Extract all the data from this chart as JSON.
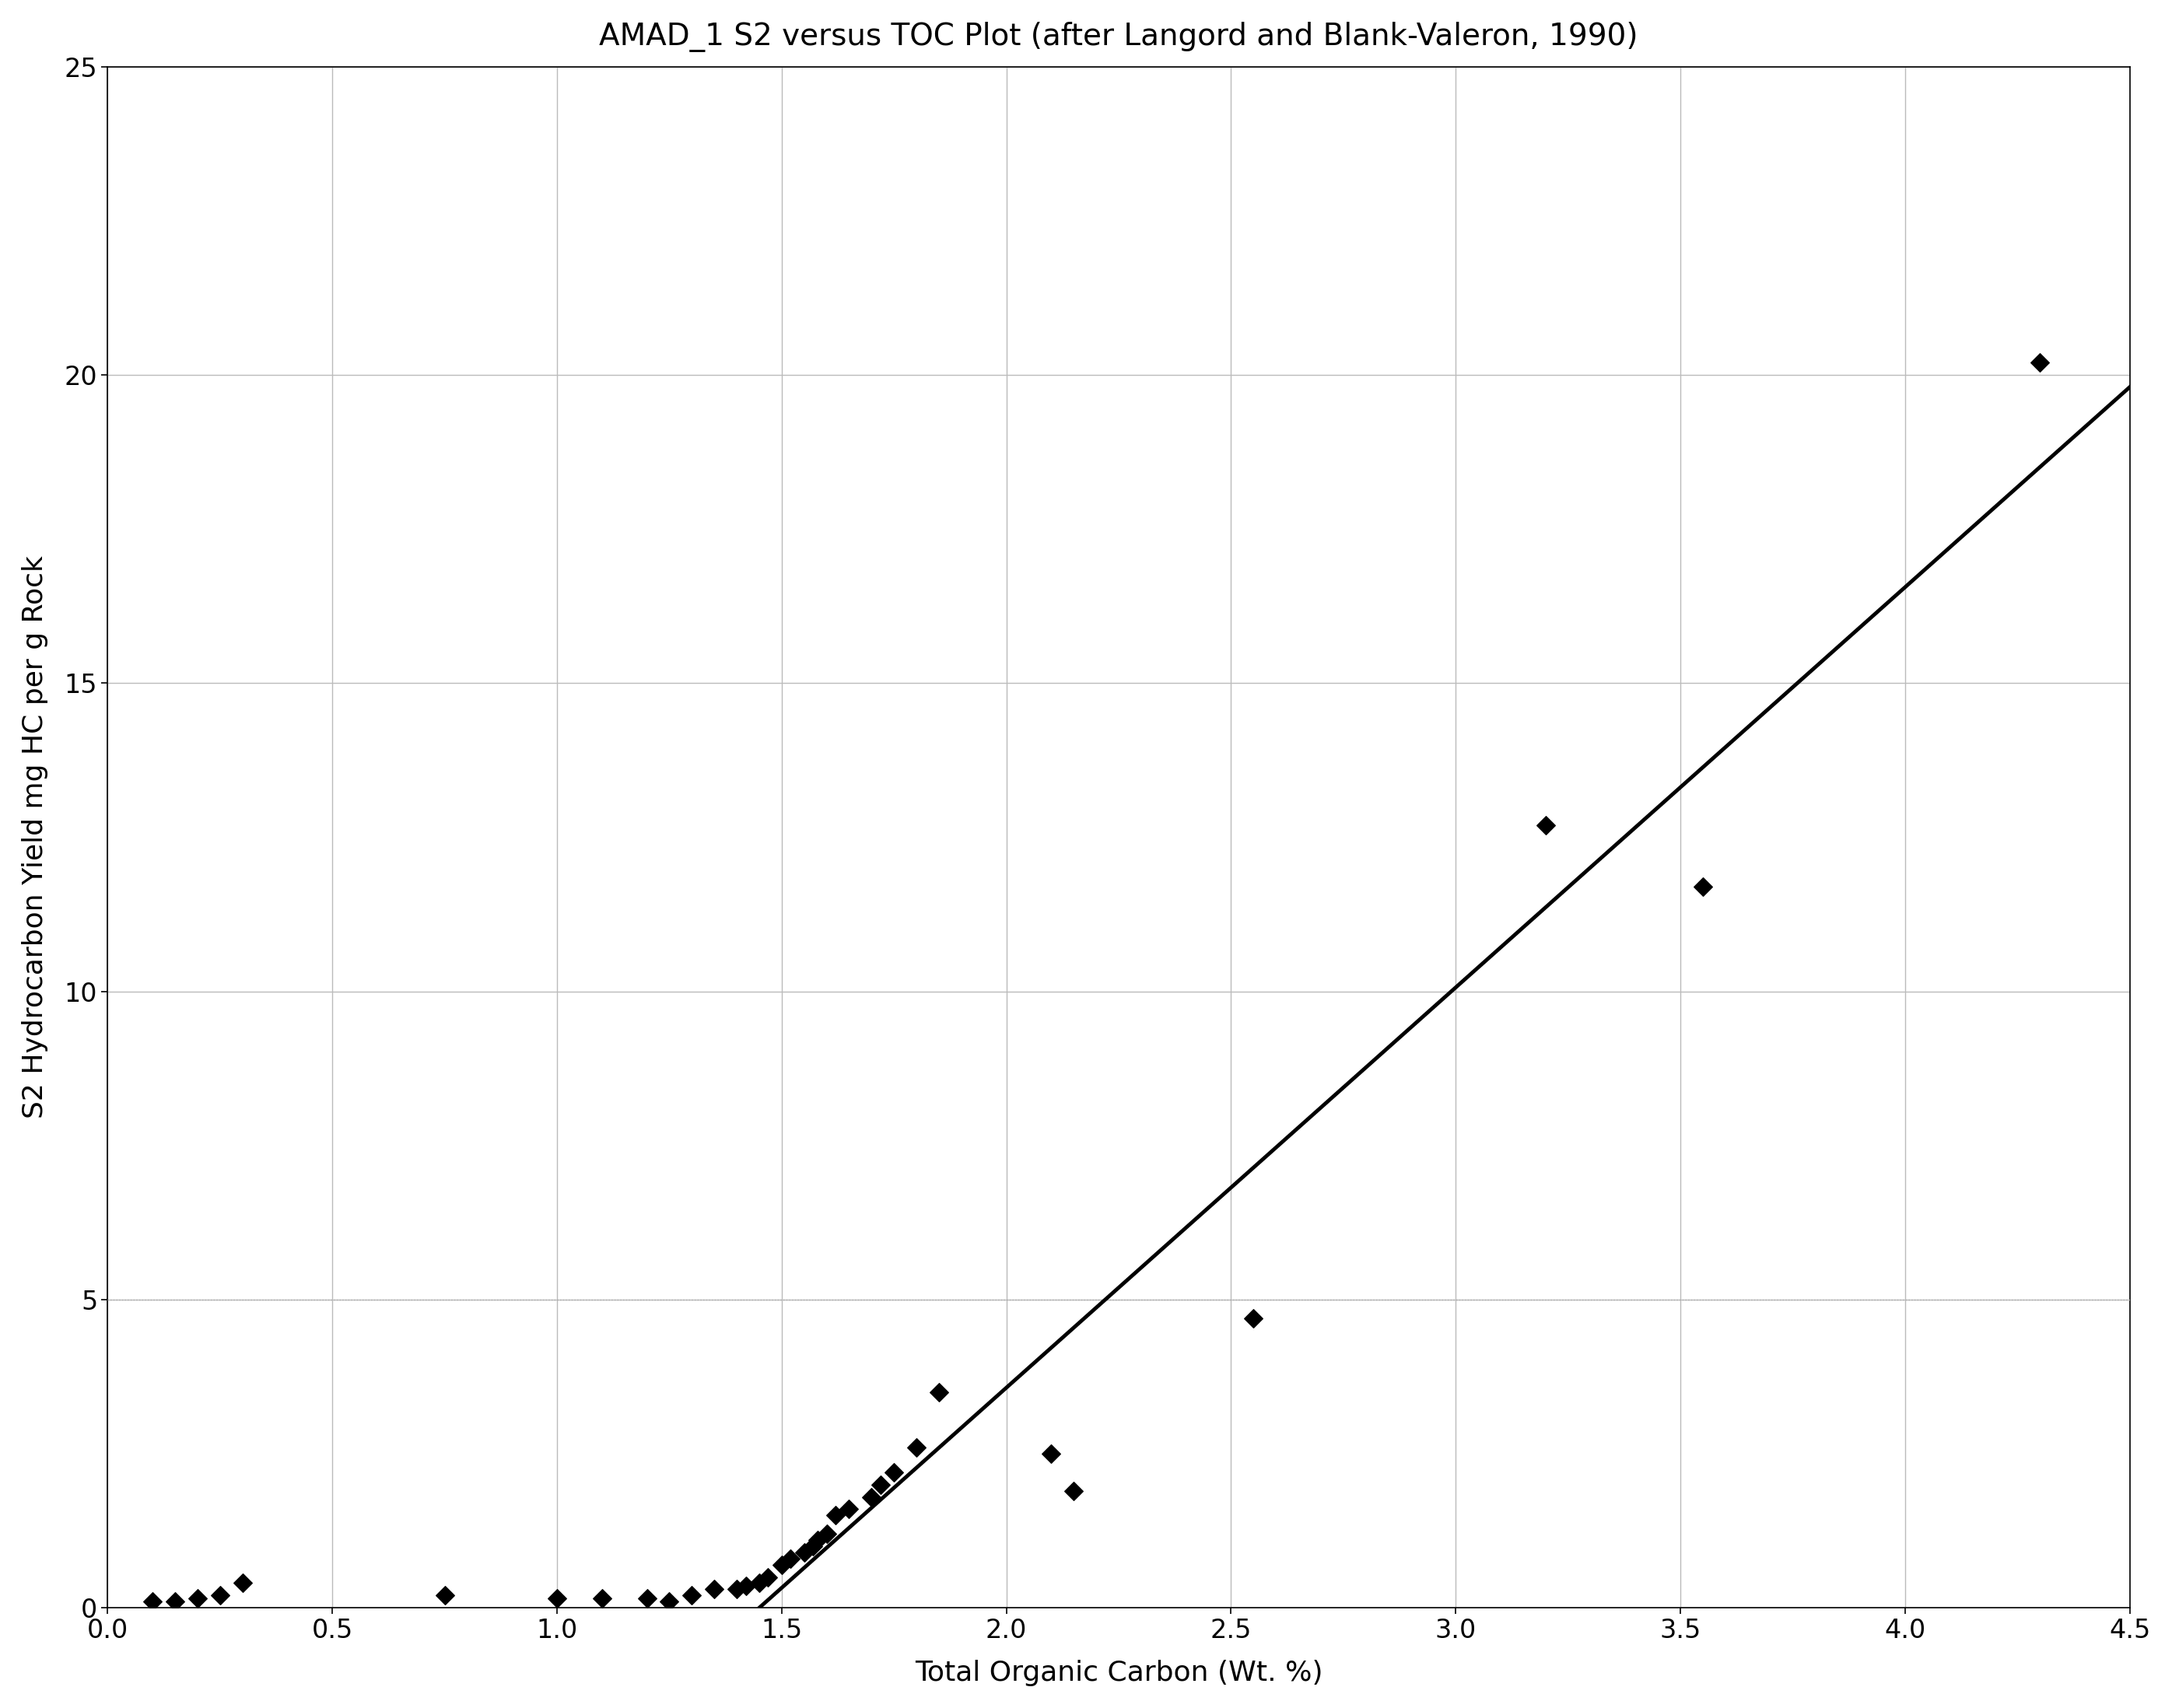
{
  "title": "AMAD_1 S2 versus TOC Plot (after Langord and Blank-Valeron, 1990)",
  "xlabel": "Total Organic Carbon (Wt. %)",
  "ylabel": "S2 Hydrocarbon Yield mg HC per g Rock",
  "xlim": [
    0,
    4.5
  ],
  "ylim": [
    0,
    25
  ],
  "xticks": [
    0,
    0.5,
    1.0,
    1.5,
    2.0,
    2.5,
    3.0,
    3.5,
    4.0,
    4.5
  ],
  "yticks": [
    0,
    5,
    10,
    15,
    20,
    25
  ],
  "scatter_x": [
    0.1,
    0.15,
    0.2,
    0.25,
    0.3,
    0.75,
    1.0,
    1.1,
    1.2,
    1.25,
    1.3,
    1.35,
    1.4,
    1.42,
    1.45,
    1.47,
    1.5,
    1.52,
    1.55,
    1.57,
    1.58,
    1.6,
    1.62,
    1.65,
    1.7,
    1.72,
    1.75,
    1.8,
    1.85,
    2.1,
    2.15,
    2.55,
    3.2,
    3.55,
    4.3
  ],
  "scatter_y": [
    0.1,
    0.1,
    0.15,
    0.2,
    0.4,
    0.2,
    0.15,
    0.15,
    0.15,
    0.1,
    0.2,
    0.3,
    0.3,
    0.35,
    0.4,
    0.5,
    0.7,
    0.8,
    0.9,
    1.0,
    1.1,
    1.2,
    1.5,
    1.6,
    1.8,
    2.0,
    2.2,
    2.6,
    3.5,
    2.5,
    1.9,
    4.7,
    12.7,
    11.7,
    20.2
  ],
  "trendline_x": [
    1.45,
    4.5
  ],
  "trendline_y": [
    0.0,
    19.8
  ],
  "scatter_color": "#000000",
  "trendline_color": "#000000",
  "background_color": "#ffffff",
  "grid_color": "#bbbbbb",
  "title_fontsize": 28,
  "label_fontsize": 26,
  "tick_fontsize": 24,
  "marker": "D",
  "marker_size": 12,
  "line_width": 3.5,
  "dotted_line_y": 5.0
}
